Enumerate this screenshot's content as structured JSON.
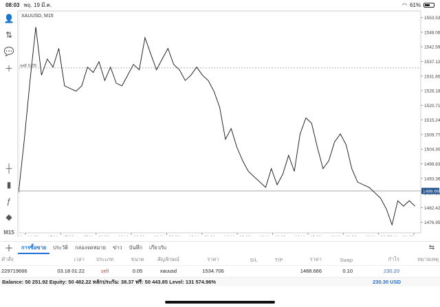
{
  "status_bar": {
    "time": "08:03",
    "date": "พฤ. 19 มี.ค.",
    "battery": "61%",
    "battery_level": 0.61
  },
  "toolbar": {
    "tools": [
      {
        "name": "account-icon",
        "glyph": "👤"
      },
      {
        "name": "trade-arrows-icon",
        "glyph": "⇅"
      },
      {
        "name": "chat-icon",
        "glyph": "💬"
      },
      {
        "name": "new-order-icon",
        "glyph": "＋"
      },
      {
        "name": "crosshair-icon",
        "glyph": "┼"
      },
      {
        "name": "candles-icon",
        "glyph": "▮"
      },
      {
        "name": "indicator-icon",
        "glyph": "ƒ"
      },
      {
        "name": "objects-icon",
        "glyph": "◆"
      }
    ],
    "timeframe": "M15"
  },
  "chart_data": {
    "type": "line",
    "title": "XAUUSD, M15",
    "y_ticks": [
      1553.53,
      1548.06,
      1542.59,
      1537.12,
      1531.65,
      1526.18,
      1520.71,
      1515.24,
      1509.77,
      1504.3,
      1498.83,
      1493.36,
      1487.89,
      1482.42,
      1476.95
    ],
    "ylim": [
      1473.0,
      1556.0
    ],
    "x_ticks": [
      "17 Mar 14:00",
      "17 Mar 17:00",
      "17 Mar 20:00",
      "18 Mar 00:00",
      "18 Mar 03:00",
      "18 Mar 06:00",
      "18 Mar 09:00",
      "18 Mar 12:00",
      "18 Mar 15:00",
      "18 Mar 18:00",
      "18 Mar 22:01",
      "19 Mar 01:00"
    ],
    "xlim": [
      0,
      140
    ],
    "current_price": "1488.666",
    "current_price_value": 1488.666,
    "position_line": {
      "label": "sell 0.05",
      "price": 1534.706
    },
    "x": [
      0,
      2,
      4,
      6,
      8,
      10,
      12,
      14,
      16,
      18,
      20,
      22,
      24,
      26,
      28,
      30,
      32,
      34,
      36,
      38,
      40,
      42,
      44,
      46,
      48,
      50,
      52,
      54,
      56,
      58,
      60,
      62,
      64,
      66,
      68,
      70,
      72,
      74,
      76,
      78,
      80,
      82,
      84,
      86,
      88,
      90,
      92,
      94,
      96,
      98,
      100,
      102,
      104,
      106,
      108,
      110,
      112,
      114,
      116,
      118,
      120,
      122,
      124,
      126,
      128,
      130,
      132,
      134,
      136,
      138
    ],
    "values": [
      1488,
      1508,
      1530,
      1550,
      1532,
      1538,
      1535,
      1542,
      1528,
      1527,
      1526,
      1528,
      1535,
      1533,
      1537,
      1530,
      1535,
      1529,
      1528,
      1532,
      1536,
      1534,
      1546,
      1540,
      1534,
      1538,
      1542,
      1536,
      1534,
      1530,
      1532,
      1535,
      1532,
      1530,
      1526,
      1520,
      1508,
      1512,
      1505,
      1500,
      1496,
      1494,
      1492,
      1490,
      1497,
      1491,
      1495,
      1502,
      1496,
      1510,
      1516,
      1514,
      1505,
      1497,
      1500,
      1507,
      1510,
      1506,
      1497,
      1492,
      1491,
      1490,
      1488,
      1486,
      1482,
      1476,
      1485,
      1483,
      1485,
      1483
    ]
  },
  "tabs": [
    {
      "label": "การซื้อขาย",
      "active": true
    },
    {
      "label": "ประวัติ",
      "active": false
    },
    {
      "label": "กล่องจดหมาย",
      "active": false
    },
    {
      "label": "ข่าว",
      "active": false
    },
    {
      "label": "บันทึก",
      "active": false
    },
    {
      "label": "เกี่ยวกับ",
      "active": false
    }
  ],
  "table": {
    "headers": [
      "คำสั่ง",
      "เวลา",
      "ประเภท",
      "ขนาด",
      "สัญลักษณ์",
      "ราคา",
      "S/L",
      "T/P",
      "ราคา",
      "Swap",
      "กำไร",
      "หมายเหตุ"
    ],
    "rows": [
      [
        "229719666",
        "03.18 01:22",
        "sell",
        "0.05",
        "xauusd",
        "1534.706",
        "",
        "",
        "1488.666",
        "0.10",
        "230.20",
        ""
      ]
    ]
  },
  "balance": {
    "text": "Balance: 50 251.92 Equity: 50 482.22 หลักประกัน: 38.37 ฟรี: 50 443.85 Level: 131 574.96%",
    "total": "230.30",
    "currency": "USD"
  },
  "colors": {
    "accent": "#1e6fd9",
    "sell": "#e53935",
    "price_line": "#1e4f8c"
  }
}
